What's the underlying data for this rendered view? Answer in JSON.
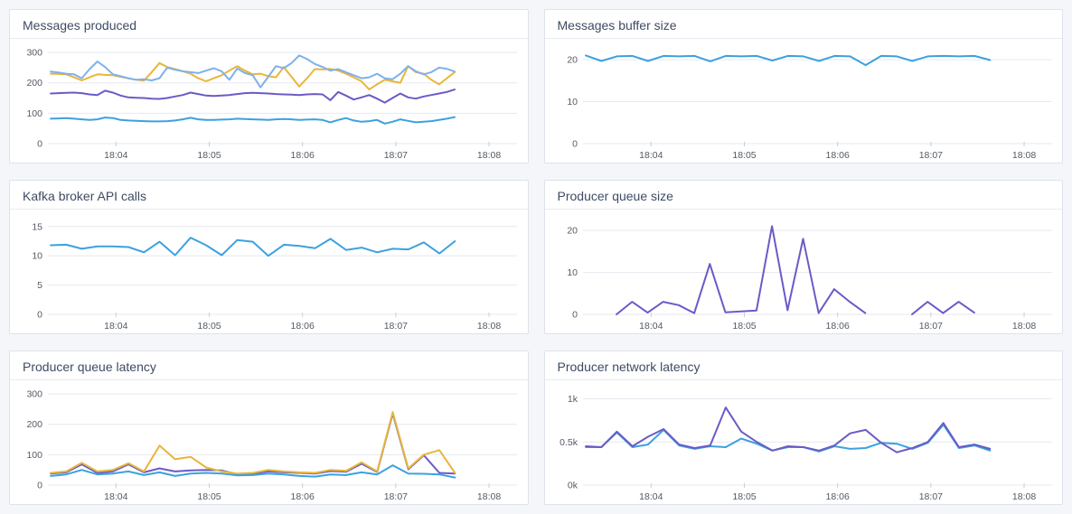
{
  "page": {
    "background_color": "#f5f6fa",
    "panel_background": "#ffffff",
    "panel_border_color": "#dde2ea",
    "title_color": "#3e4b63",
    "axis_label_color": "#545a63",
    "gridline_color": "#e6e9ef"
  },
  "time_axis": {
    "tick_labels": [
      "18:04",
      "18:05",
      "18:06",
      "18:07",
      "18:08"
    ],
    "tick_values": [
      4,
      5,
      6,
      7,
      8
    ],
    "xlim": [
      3.27,
      8.3
    ]
  },
  "chart_data": [
    {
      "type": "line",
      "title": "Messages produced",
      "ylabel": "",
      "xlabel": "",
      "ylim": [
        0,
        312
      ],
      "grid": true,
      "legend": "none",
      "y_ticks": [
        {
          "v": 0,
          "label": "0"
        },
        {
          "v": 100,
          "label": "100"
        },
        {
          "v": 200,
          "label": "200"
        },
        {
          "v": 300,
          "label": "300"
        }
      ],
      "series": [
        {
          "name": "producer-yellow",
          "color": "#E8B63A",
          "x_start": 3.3,
          "x_step": 0.0833,
          "values": [
            230,
            229,
            228,
            218,
            208,
            218,
            228,
            226,
            225,
            220,
            215,
            210,
            207,
            235,
            265,
            252,
            245,
            238,
            230,
            215,
            205,
            215,
            225,
            240,
            255,
            240,
            228,
            230,
            222,
            218,
            252,
            220,
            188,
            215,
            245,
            244,
            246,
            240,
            230,
            218,
            205,
            178,
            195,
            210,
            205,
            200,
            255,
            235,
            230,
            210,
            195,
            215,
            235
          ]
        },
        {
          "name": "producer-light-blue",
          "color": "#7FB1EA",
          "x_start": 3.3,
          "x_step": 0.0833,
          "values": [
            237,
            234,
            230,
            228,
            215,
            245,
            270,
            252,
            228,
            222,
            215,
            210,
            212,
            208,
            215,
            250,
            243,
            238,
            235,
            232,
            240,
            248,
            238,
            210,
            247,
            232,
            225,
            185,
            220,
            255,
            248,
            265,
            290,
            278,
            262,
            252,
            240,
            245,
            235,
            225,
            215,
            218,
            230,
            215,
            212,
            230,
            255,
            238,
            228,
            235,
            250,
            246,
            237
          ]
        },
        {
          "name": "producer-violet",
          "color": "#6A5BC7",
          "x_start": 3.3,
          "x_step": 0.0833,
          "values": [
            165,
            166,
            167,
            168,
            166,
            162,
            160,
            174,
            168,
            158,
            152,
            151,
            150,
            148,
            147,
            150,
            155,
            160,
            168,
            163,
            158,
            157,
            158,
            160,
            163,
            166,
            167,
            166,
            165,
            163,
            162,
            161,
            160,
            162,
            163,
            162,
            143,
            170,
            158,
            145,
            152,
            160,
            148,
            135,
            150,
            165,
            152,
            148,
            155,
            160,
            165,
            170,
            178
          ]
        },
        {
          "name": "producer-blue",
          "color": "#3CA1DF",
          "x_start": 3.3,
          "x_step": 0.0833,
          "values": [
            82,
            83,
            84,
            82,
            80,
            78,
            80,
            86,
            84,
            78,
            76,
            75,
            74,
            73,
            73,
            74,
            76,
            80,
            85,
            80,
            78,
            78,
            79,
            80,
            82,
            81,
            80,
            79,
            78,
            80,
            81,
            80,
            78,
            79,
            80,
            78,
            70,
            78,
            84,
            76,
            72,
            74,
            78,
            66,
            72,
            80,
            75,
            70,
            72,
            74,
            78,
            82,
            87
          ]
        }
      ]
    },
    {
      "type": "line",
      "title": "Messages buffer size",
      "ylabel": "",
      "xlabel": "",
      "ylim": [
        0,
        22.6
      ],
      "grid": true,
      "legend": "none",
      "y_ticks": [
        {
          "v": 0,
          "label": "0"
        },
        {
          "v": 10,
          "label": "10"
        },
        {
          "v": 20,
          "label": "20"
        }
      ],
      "series": [
        {
          "name": "buffer-size",
          "color": "#3CA1DF",
          "x_start": 3.3,
          "x_step": 0.1667,
          "values": [
            21,
            19.7,
            20.8,
            20.9,
            19.7,
            20.9,
            20.8,
            20.9,
            19.6,
            20.9,
            20.8,
            20.9,
            19.8,
            20.9,
            20.8,
            19.7,
            20.9,
            20.8,
            18.7,
            20.9,
            20.8,
            19.7,
            20.8,
            20.9,
            20.8,
            20.9,
            19.9
          ]
        }
      ]
    },
    {
      "type": "line",
      "title": "Kafka broker API calls",
      "ylabel": "",
      "xlabel": "",
      "ylim": [
        0,
        16.2
      ],
      "grid": true,
      "legend": "none",
      "y_ticks": [
        {
          "v": 0,
          "label": "0"
        },
        {
          "v": 5,
          "label": "5"
        },
        {
          "v": 10,
          "label": "10"
        },
        {
          "v": 15,
          "label": "15"
        }
      ],
      "series": [
        {
          "name": "api-calls",
          "color": "#3CA1DF",
          "x_start": 3.3,
          "x_step": 0.1667,
          "values": [
            11.8,
            11.9,
            11.2,
            11.6,
            11.6,
            11.5,
            10.6,
            12.4,
            10.1,
            13.1,
            11.8,
            10.1,
            12.7,
            12.4,
            10.0,
            11.9,
            11.7,
            11.3,
            12.9,
            11.0,
            11.4,
            10.6,
            11.2,
            11.1,
            12.3,
            10.4,
            12.5
          ]
        }
      ]
    },
    {
      "type": "line",
      "title": "Producer queue size",
      "ylabel": "",
      "xlabel": "",
      "ylim": [
        0,
        22.6
      ],
      "grid": true,
      "legend": "none",
      "y_ticks": [
        {
          "v": 0,
          "label": "0"
        },
        {
          "v": 10,
          "label": "10"
        },
        {
          "v": 20,
          "label": "20"
        }
      ],
      "series": [
        {
          "name": "queue-size",
          "color": "#6A5BC7",
          "x_start": 3.63,
          "x_step": 0.1667,
          "values": [
            0,
            3,
            0.4,
            3,
            2.2,
            0.3,
            12,
            0.5,
            0.7,
            0.9,
            21,
            1,
            18,
            0.3,
            6,
            3,
            0.3,
            null,
            null,
            0,
            3,
            0.3,
            3,
            0.4
          ]
        }
      ]
    },
    {
      "type": "line",
      "title": "Producer queue latency",
      "ylabel": "",
      "xlabel": "",
      "ylim": [
        0,
        312
      ],
      "grid": true,
      "legend": "none",
      "y_ticks": [
        {
          "v": 0,
          "label": "0"
        },
        {
          "v": 100,
          "label": "100"
        },
        {
          "v": 200,
          "label": "200"
        },
        {
          "v": 300,
          "label": "300"
        }
      ],
      "series": [
        {
          "name": "latency-violet",
          "color": "#6A5BC7",
          "x_start": 3.3,
          "x_step": 0.1667,
          "values": [
            38,
            42,
            68,
            40,
            45,
            68,
            42,
            55,
            45,
            48,
            50,
            48,
            36,
            38,
            45,
            42,
            40,
            38,
            46,
            44,
            70,
            43,
            235,
            52,
            98,
            40,
            38
          ]
        },
        {
          "name": "latency-yellow",
          "color": "#E8B63A",
          "x_start": 3.3,
          "x_step": 0.1667,
          "values": [
            40,
            45,
            73,
            45,
            50,
            72,
            45,
            130,
            85,
            93,
            58,
            45,
            38,
            40,
            50,
            45,
            42,
            40,
            50,
            47,
            75,
            45,
            240,
            55,
            100,
            115,
            40
          ]
        },
        {
          "name": "latency-blue",
          "color": "#3CA1DF",
          "x_start": 3.3,
          "x_step": 0.1667,
          "values": [
            30,
            35,
            50,
            35,
            38,
            45,
            33,
            42,
            30,
            38,
            40,
            38,
            32,
            33,
            38,
            35,
            30,
            28,
            35,
            33,
            42,
            35,
            65,
            38,
            37,
            35,
            25
          ]
        }
      ]
    },
    {
      "type": "line",
      "title": "Producer network latency",
      "ylabel": "",
      "xlabel": "",
      "ylim": [
        0,
        1.1
      ],
      "grid": true,
      "legend": "none",
      "y_ticks": [
        {
          "v": 0,
          "label": "0k"
        },
        {
          "v": 0.5,
          "label": "0.5k"
        },
        {
          "v": 1,
          "label": "1k"
        }
      ],
      "series": [
        {
          "name": "network-latency-blue",
          "color": "#3CA1DF",
          "x_start": 3.3,
          "x_step": 0.1667,
          "values": [
            0.44,
            0.44,
            0.61,
            0.44,
            0.47,
            0.64,
            0.46,
            0.42,
            0.45,
            0.44,
            0.54,
            0.48,
            0.4,
            0.44,
            0.44,
            0.39,
            0.45,
            0.42,
            0.43,
            0.49,
            0.48,
            0.42,
            0.49,
            0.7,
            0.43,
            0.46,
            0.4
          ]
        },
        {
          "name": "network-latency-violet",
          "color": "#6A5BC7",
          "x_start": 3.3,
          "x_step": 0.1667,
          "values": [
            0.45,
            0.44,
            0.62,
            0.45,
            0.56,
            0.65,
            0.47,
            0.43,
            0.46,
            0.9,
            0.62,
            0.5,
            0.4,
            0.45,
            0.44,
            0.4,
            0.46,
            0.6,
            0.64,
            0.49,
            0.38,
            0.43,
            0.5,
            0.72,
            0.44,
            0.47,
            0.42
          ]
        }
      ]
    }
  ]
}
